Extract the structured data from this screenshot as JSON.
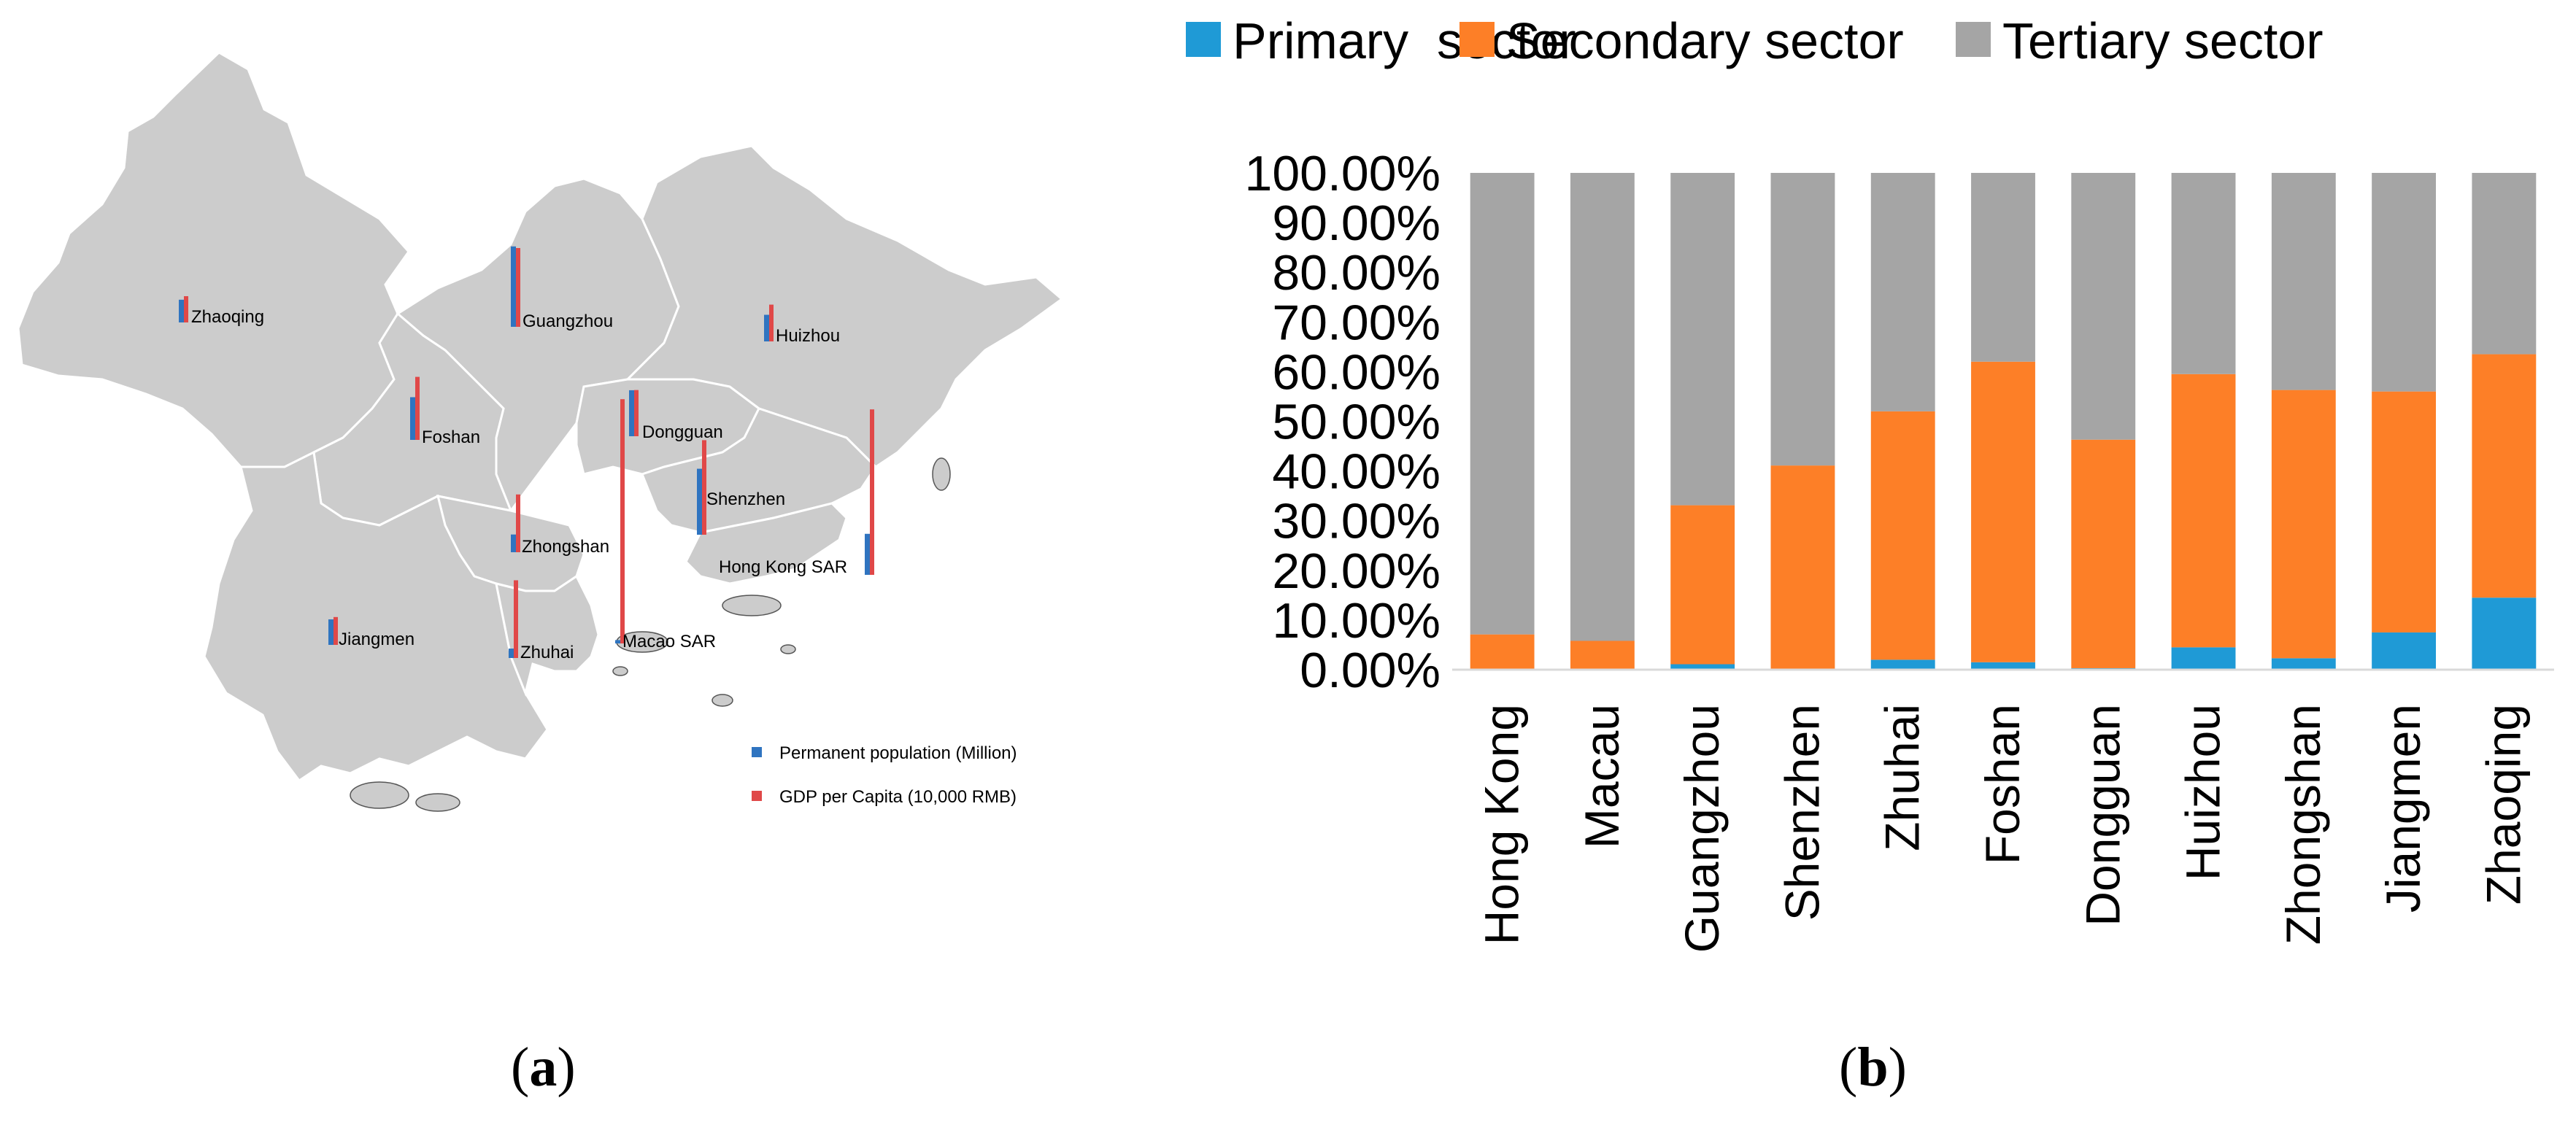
{
  "map_panel": {
    "caption_letter": "a",
    "legend": [
      {
        "label": "Permanent population (Million)",
        "color": "#2f74c0"
      },
      {
        "label": "GDP per Capita (10,000 RMB)",
        "color": "#e04848"
      }
    ],
    "region_color": "#cccccc",
    "border_color": "#ffffff"
  },
  "chart_panel": {
    "caption_letter": "b"
  },
  "chart_data": [
    {
      "type": "bar",
      "chart_id": "map_bars",
      "series": [
        {
          "name": "Permanent population (Million)",
          "color": "#2f74c0"
        },
        {
          "name": "GDP per Capita (10,000 RMB)",
          "color": "#e04848"
        }
      ],
      "cities": [
        {
          "name": "Zhaoqing",
          "population": 4.1,
          "gdp": 5.0
        },
        {
          "name": "Guangzhou",
          "population": 14.5,
          "gdp": 15.0
        },
        {
          "name": "Huizhou",
          "population": 4.8,
          "gdp": 7.0
        },
        {
          "name": "Foshan",
          "population": 7.7,
          "gdp": 12.0
        },
        {
          "name": "Dongguan",
          "population": 8.3,
          "gdp": 8.8
        },
        {
          "name": "Shenzhen",
          "population": 11.9,
          "gdp": 18.0
        },
        {
          "name": "Zhongshan",
          "population": 3.2,
          "gdp": 11.0
        },
        {
          "name": "Hong Kong SAR",
          "population": 7.4,
          "gdp": 31.5
        },
        {
          "name": "Jiangmen",
          "population": 4.6,
          "gdp": 5.3
        },
        {
          "name": "Zhuhai",
          "population": 1.7,
          "gdp": 14.8
        },
        {
          "name": "Macao SAR",
          "population": 0.6,
          "gdp": 46.5
        }
      ]
    },
    {
      "type": "bar",
      "chart_id": "sector_stack",
      "stacked": true,
      "categories": [
        "Hong Kong",
        "Macau",
        "Guangzhou",
        "Shenzhen",
        "Zhuhai",
        "Foshan",
        "Dongguan",
        "Huizhou",
        "Zhongshan",
        "Jiangmen",
        "Zhaoqing"
      ],
      "series": [
        {
          "name": "Primary  sector",
          "color": "#1f9ad6",
          "values": [
            0.1,
            0.0,
            1.1,
            0.1,
            2.0,
            1.5,
            0.3,
            4.5,
            2.3,
            7.5,
            14.5
          ]
        },
        {
          "name": "Secondary sector",
          "color": "#fd7f27",
          "values": [
            7.0,
            5.8,
            32.0,
            41.0,
            50.0,
            60.5,
            46.0,
            55.0,
            54.0,
            48.5,
            49.0
          ]
        },
        {
          "name": "Tertiary sector",
          "color": "#a5a5a5",
          "values": [
            92.9,
            94.2,
            66.9,
            58.9,
            48.0,
            38.0,
            53.7,
            40.5,
            43.7,
            44.0,
            36.5
          ]
        }
      ],
      "y_ticks": [
        "0.00%",
        "10.00%",
        "20.00%",
        "30.00%",
        "40.00%",
        "50.00%",
        "60.00%",
        "70.00%",
        "80.00%",
        "90.00%",
        "100.00%"
      ],
      "ylim": [
        0,
        100
      ],
      "legend_position": "top",
      "grid": false
    }
  ]
}
